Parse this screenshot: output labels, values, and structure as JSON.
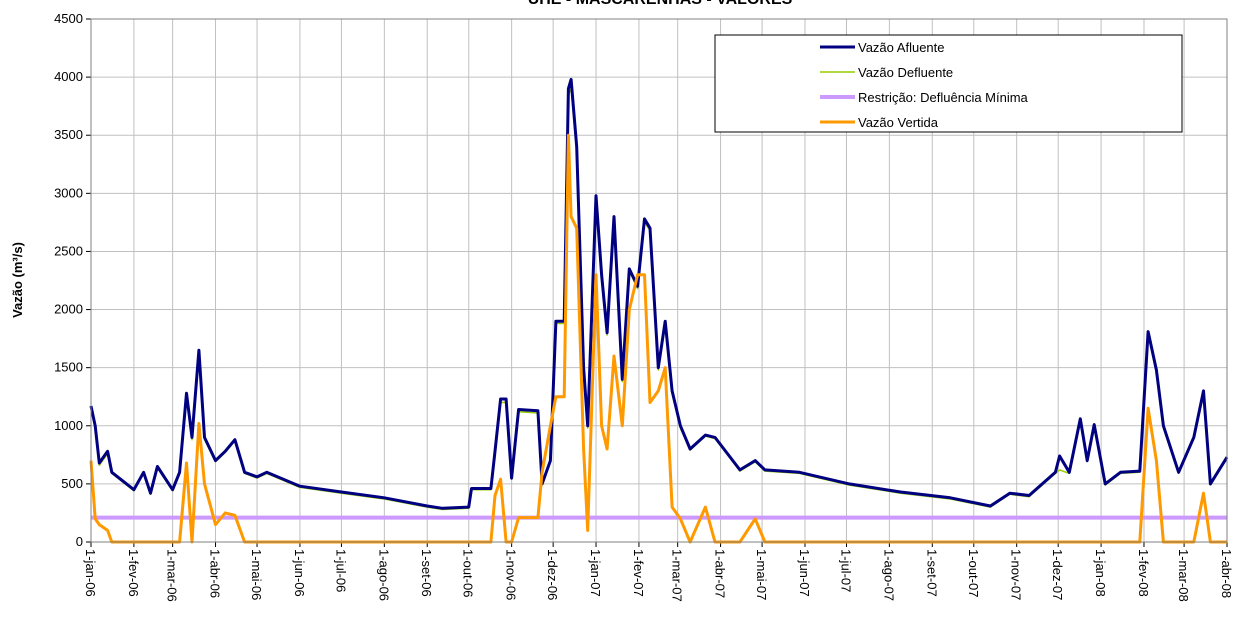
{
  "chart_data": {
    "type": "line",
    "title": "UHE - MASCARENHAS - VALORES",
    "ylabel": "Vazão (m³/s)",
    "legend": "upper right",
    "grid": true,
    "xlim": [
      "2006-01-01",
      "2008-04-01"
    ],
    "ylim": [
      0,
      4500
    ],
    "yticks": [
      0,
      500,
      1000,
      1500,
      2000,
      2500,
      3000,
      3500,
      4000,
      4500
    ],
    "xticks": [
      {
        "value": "2006-01-01",
        "label": "1-jan-06"
      },
      {
        "value": "2006-02-01",
        "label": "1-fev-06"
      },
      {
        "value": "2006-03-01",
        "label": "1-mar-06"
      },
      {
        "value": "2006-04-01",
        "label": "1-abr-06"
      },
      {
        "value": "2006-05-01",
        "label": "1-mai-06"
      },
      {
        "value": "2006-06-01",
        "label": "1-jun-06"
      },
      {
        "value": "2006-07-01",
        "label": "1-jul-06"
      },
      {
        "value": "2006-08-01",
        "label": "1-ago-06"
      },
      {
        "value": "2006-09-01",
        "label": "1-set-06"
      },
      {
        "value": "2006-10-01",
        "label": "1-out-06"
      },
      {
        "value": "2006-11-01",
        "label": "1-nov-06"
      },
      {
        "value": "2006-12-01",
        "label": "1-dez-06"
      },
      {
        "value": "2007-01-01",
        "label": "1-jan-07"
      },
      {
        "value": "2007-02-01",
        "label": "1-fev-07"
      },
      {
        "value": "2007-03-01",
        "label": "1-mar-07"
      },
      {
        "value": "2007-04-01",
        "label": "1-abr-07"
      },
      {
        "value": "2007-05-01",
        "label": "1-mai-07"
      },
      {
        "value": "2007-06-01",
        "label": "1-jun-07"
      },
      {
        "value": "2007-07-01",
        "label": "1-jul-07"
      },
      {
        "value": "2007-08-01",
        "label": "1-ago-07"
      },
      {
        "value": "2007-09-01",
        "label": "1-set-07"
      },
      {
        "value": "2007-10-01",
        "label": "1-out-07"
      },
      {
        "value": "2007-11-01",
        "label": "1-nov-07"
      },
      {
        "value": "2007-12-01",
        "label": "1-dez-07"
      },
      {
        "value": "2008-01-01",
        "label": "1-jan-08"
      },
      {
        "value": "2008-02-01",
        "label": "1-fev-08"
      },
      {
        "value": "2008-03-01",
        "label": "1-mar-08"
      },
      {
        "value": "2008-04-01",
        "label": "1-abr-08"
      }
    ],
    "x": [
      "2006-01-01",
      "2006-01-04",
      "2006-01-07",
      "2006-01-13",
      "2006-01-16",
      "2006-02-01",
      "2006-02-08",
      "2006-02-13",
      "2006-02-18",
      "2006-03-01",
      "2006-03-06",
      "2006-03-11",
      "2006-03-15",
      "2006-03-20",
      "2006-03-24",
      "2006-04-01",
      "2006-04-08",
      "2006-04-15",
      "2006-04-22",
      "2006-05-01",
      "2006-05-08",
      "2006-06-01",
      "2006-07-01",
      "2006-08-01",
      "2006-09-01",
      "2006-09-12",
      "2006-10-01",
      "2006-10-03",
      "2006-10-17",
      "2006-10-20",
      "2006-10-24",
      "2006-10-28",
      "2006-11-01",
      "2006-11-06",
      "2006-11-20",
      "2006-11-23",
      "2006-11-29",
      "2006-12-03",
      "2006-12-09",
      "2006-12-12",
      "2006-12-14",
      "2006-12-18",
      "2006-12-23",
      "2006-12-26",
      "2007-01-01",
      "2007-01-05",
      "2007-01-09",
      "2007-01-14",
      "2007-01-20",
      "2007-01-25",
      "2007-01-31",
      "2007-02-05",
      "2007-02-09",
      "2007-02-15",
      "2007-02-20",
      "2007-02-25",
      "2007-03-03",
      "2007-03-10",
      "2007-03-21",
      "2007-03-28",
      "2007-04-15",
      "2007-04-26",
      "2007-05-03",
      "2007-05-28",
      "2007-07-03",
      "2007-08-09",
      "2007-09-14",
      "2007-10-13",
      "2007-10-27",
      "2007-11-10",
      "2007-11-29",
      "2007-12-02",
      "2007-12-09",
      "2007-12-17",
      "2007-12-22",
      "2007-12-27",
      "2008-01-04",
      "2008-01-15",
      "2008-01-29",
      "2008-02-04",
      "2008-02-10",
      "2008-02-15",
      "2008-02-26",
      "2008-03-08",
      "2008-03-15",
      "2008-03-20",
      "2008-04-01"
    ],
    "series": [
      {
        "name": "Vazão Afluente",
        "color": "#000080",
        "width": 3,
        "values": [
          1170,
          1000,
          680,
          780,
          600,
          450,
          600,
          420,
          650,
          450,
          600,
          1280,
          900,
          1650,
          900,
          700,
          780,
          880,
          600,
          560,
          600,
          480,
          430,
          380,
          310,
          290,
          300,
          460,
          460,
          780,
          1230,
          1230,
          550,
          1140,
          1130,
          500,
          700,
          1900,
          1900,
          3900,
          3980,
          3400,
          1500,
          1000,
          2980,
          2300,
          1800,
          2800,
          1400,
          2350,
          2200,
          2780,
          2700,
          1500,
          1900,
          1300,
          1000,
          800,
          920,
          900,
          620,
          700,
          620,
          600,
          500,
          430,
          380,
          310,
          420,
          400,
          600,
          740,
          600,
          1060,
          700,
          1010,
          500,
          600,
          610,
          1810,
          1480,
          1000,
          600,
          900,
          1300,
          500,
          730
        ]
      },
      {
        "name": "Vazão Defluente",
        "color": "#99cc00",
        "width": 1.5,
        "values": [
          1150,
          980,
          660,
          760,
          590,
          440,
          590,
          410,
          640,
          440,
          590,
          1250,
          880,
          1600,
          880,
          690,
          770,
          870,
          590,
          550,
          590,
          470,
          420,
          370,
          300,
          280,
          290,
          450,
          450,
          760,
          1200,
          1200,
          540,
          1120,
          1110,
          490,
          690,
          1880,
          1880,
          3850,
          3900,
          3350,
          1480,
          980,
          2950,
          2280,
          1780,
          2780,
          1380,
          2330,
          2180,
          2750,
          2680,
          1480,
          1880,
          1280,
          980,
          790,
          910,
          890,
          610,
          690,
          610,
          590,
          490,
          420,
          370,
          300,
          410,
          390,
          590,
          620,
          590,
          1040,
          690,
          1000,
          490,
          590,
          600,
          1780,
          1460,
          980,
          590,
          890,
          1280,
          490,
          720
        ]
      },
      {
        "name": "Restrição: Defluência Mínima",
        "color": "#cc99ff",
        "width": 4,
        "values": [
          210,
          210,
          210,
          210,
          210,
          210,
          210,
          210,
          210,
          210,
          210,
          210,
          210,
          210,
          210,
          210,
          210,
          210,
          210,
          210,
          210,
          210,
          210,
          210,
          210,
          210,
          210,
          210,
          210,
          210,
          210,
          210,
          210,
          210,
          210,
          210,
          210,
          210,
          210,
          210,
          210,
          210,
          210,
          210,
          210,
          210,
          210,
          210,
          210,
          210,
          210,
          210,
          210,
          210,
          210,
          210,
          210,
          210,
          210,
          210,
          210,
          210,
          210,
          210,
          210,
          210,
          210,
          210,
          210,
          210,
          210,
          210,
          210,
          210,
          210,
          210,
          210,
          210,
          210,
          210,
          210,
          210,
          210,
          210,
          210,
          210,
          210
        ]
      },
      {
        "name": "Vazão Vertida",
        "color": "#ff9900",
        "width": 3,
        "values": [
          700,
          200,
          150,
          100,
          0,
          0,
          0,
          0,
          0,
          0,
          0,
          680,
          0,
          1020,
          500,
          150,
          250,
          230,
          0,
          0,
          0,
          0,
          0,
          0,
          0,
          0,
          0,
          0,
          0,
          400,
          540,
          0,
          0,
          210,
          210,
          600,
          1000,
          1250,
          1250,
          3500,
          2800,
          2700,
          800,
          100,
          2300,
          1000,
          800,
          1600,
          1000,
          2000,
          2300,
          2300,
          1200,
          1300,
          1500,
          300,
          200,
          0,
          300,
          0,
          0,
          200,
          0,
          0,
          0,
          0,
          0,
          0,
          0,
          0,
          0,
          0,
          0,
          0,
          0,
          0,
          0,
          0,
          0,
          1150,
          700,
          0,
          0,
          0,
          420,
          0,
          0
        ]
      }
    ]
  }
}
